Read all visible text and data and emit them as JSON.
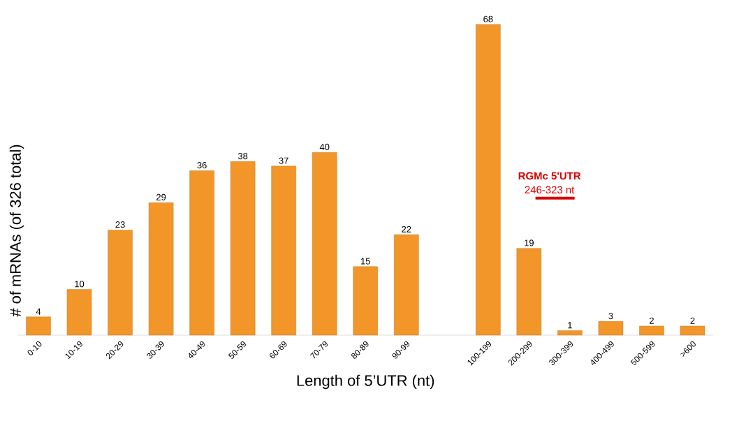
{
  "chart_data": {
    "type": "bar",
    "categories": [
      "0-10",
      "10-19",
      "20-29",
      "30-39",
      "40-49",
      "50-59",
      "60-69",
      "70-79",
      "80-89",
      "90-99",
      null,
      "100-199",
      "200-299",
      "300-399",
      "400-499",
      "500-599",
      ">600"
    ],
    "values": [
      4,
      10,
      23,
      29,
      36,
      38,
      37,
      40,
      15,
      22,
      null,
      68,
      19,
      1,
      3,
      2,
      2
    ],
    "color": "#f2962a",
    "data_labels": true,
    "xlabel": "Length of 5’UTR (nt)",
    "ylabel": "# of mRNAs (of 326 total)",
    "annotations": [
      "**RGMc 5'UTR**",
      "246-323 nt"
    ]
  }
}
